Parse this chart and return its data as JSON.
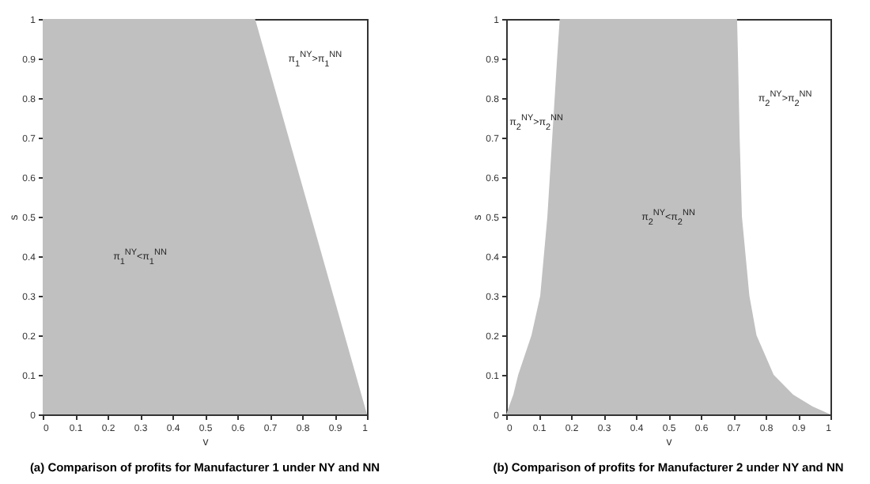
{
  "chart_data": [
    {
      "type": "area",
      "title": "(a) Comparison of profits for Manufacturer 1 under NY and NN",
      "xlabel": "v",
      "ylabel": "s",
      "xlim": [
        0,
        1
      ],
      "ylim": [
        0,
        1
      ],
      "xticks": [
        0,
        0.1,
        0.2,
        0.3,
        0.4,
        0.5,
        0.6,
        0.7,
        0.8,
        0.9,
        1
      ],
      "yticks": [
        0,
        0.1,
        0.2,
        0.3,
        0.4,
        0.5,
        0.6,
        0.7,
        0.8,
        0.9,
        1
      ],
      "grid": false,
      "series": [
        {
          "color": "#c0c0c0",
          "x": [
            0,
            0.655,
            1
          ],
          "values": [
            1,
            1,
            0
          ]
        }
      ],
      "annotations": [
        "π$_{1}$$^{NY}$>π$_{1}$$^{NN}$",
        "π$_{1}$$^{NY}$<π$_{1}$$^{NN}$"
      ]
    },
    {
      "type": "area",
      "title": "(b) Comparison of profits for Manufacturer 2 under NY and NN",
      "xlabel": "v",
      "ylabel": "s",
      "xlim": [
        0,
        1
      ],
      "ylim": [
        0,
        1
      ],
      "xticks": [
        0,
        0.1,
        0.2,
        0.3,
        0.4,
        0.5,
        0.6,
        0.7,
        0.8,
        0.9,
        1
      ],
      "yticks": [
        0,
        0.1,
        0.2,
        0.3,
        0.4,
        0.5,
        0.6,
        0.7,
        0.8,
        0.9,
        1
      ],
      "grid": false,
      "series": [
        {
          "color": "#c0c0c0",
          "x": [
            0,
            0.022,
            0.037,
            0.078,
            0.105,
            0.127,
            0.142,
            0.157,
            0.165,
            0.712,
            0.715,
            0.72,
            0.727,
            0.75,
            0.772,
            0.825,
            0.885,
            0.945,
            1
          ],
          "values": [
            0,
            0.05,
            0.1,
            0.2,
            0.3,
            0.5,
            0.7,
            0.9,
            1,
            1,
            0.9,
            0.7,
            0.5,
            0.3,
            0.2,
            0.1,
            0.05,
            0.02,
            0
          ]
        }
      ],
      "annotations": [
        "π$_{2}$$^{NY}$>π$_{2}$$^{NN}$",
        "π$_{2}$$^{NY}$>π$_{2}$$^{NN}$",
        "π$_{2}$$^{NY}$<π$_{2}$$^{NN}$"
      ]
    }
  ]
}
